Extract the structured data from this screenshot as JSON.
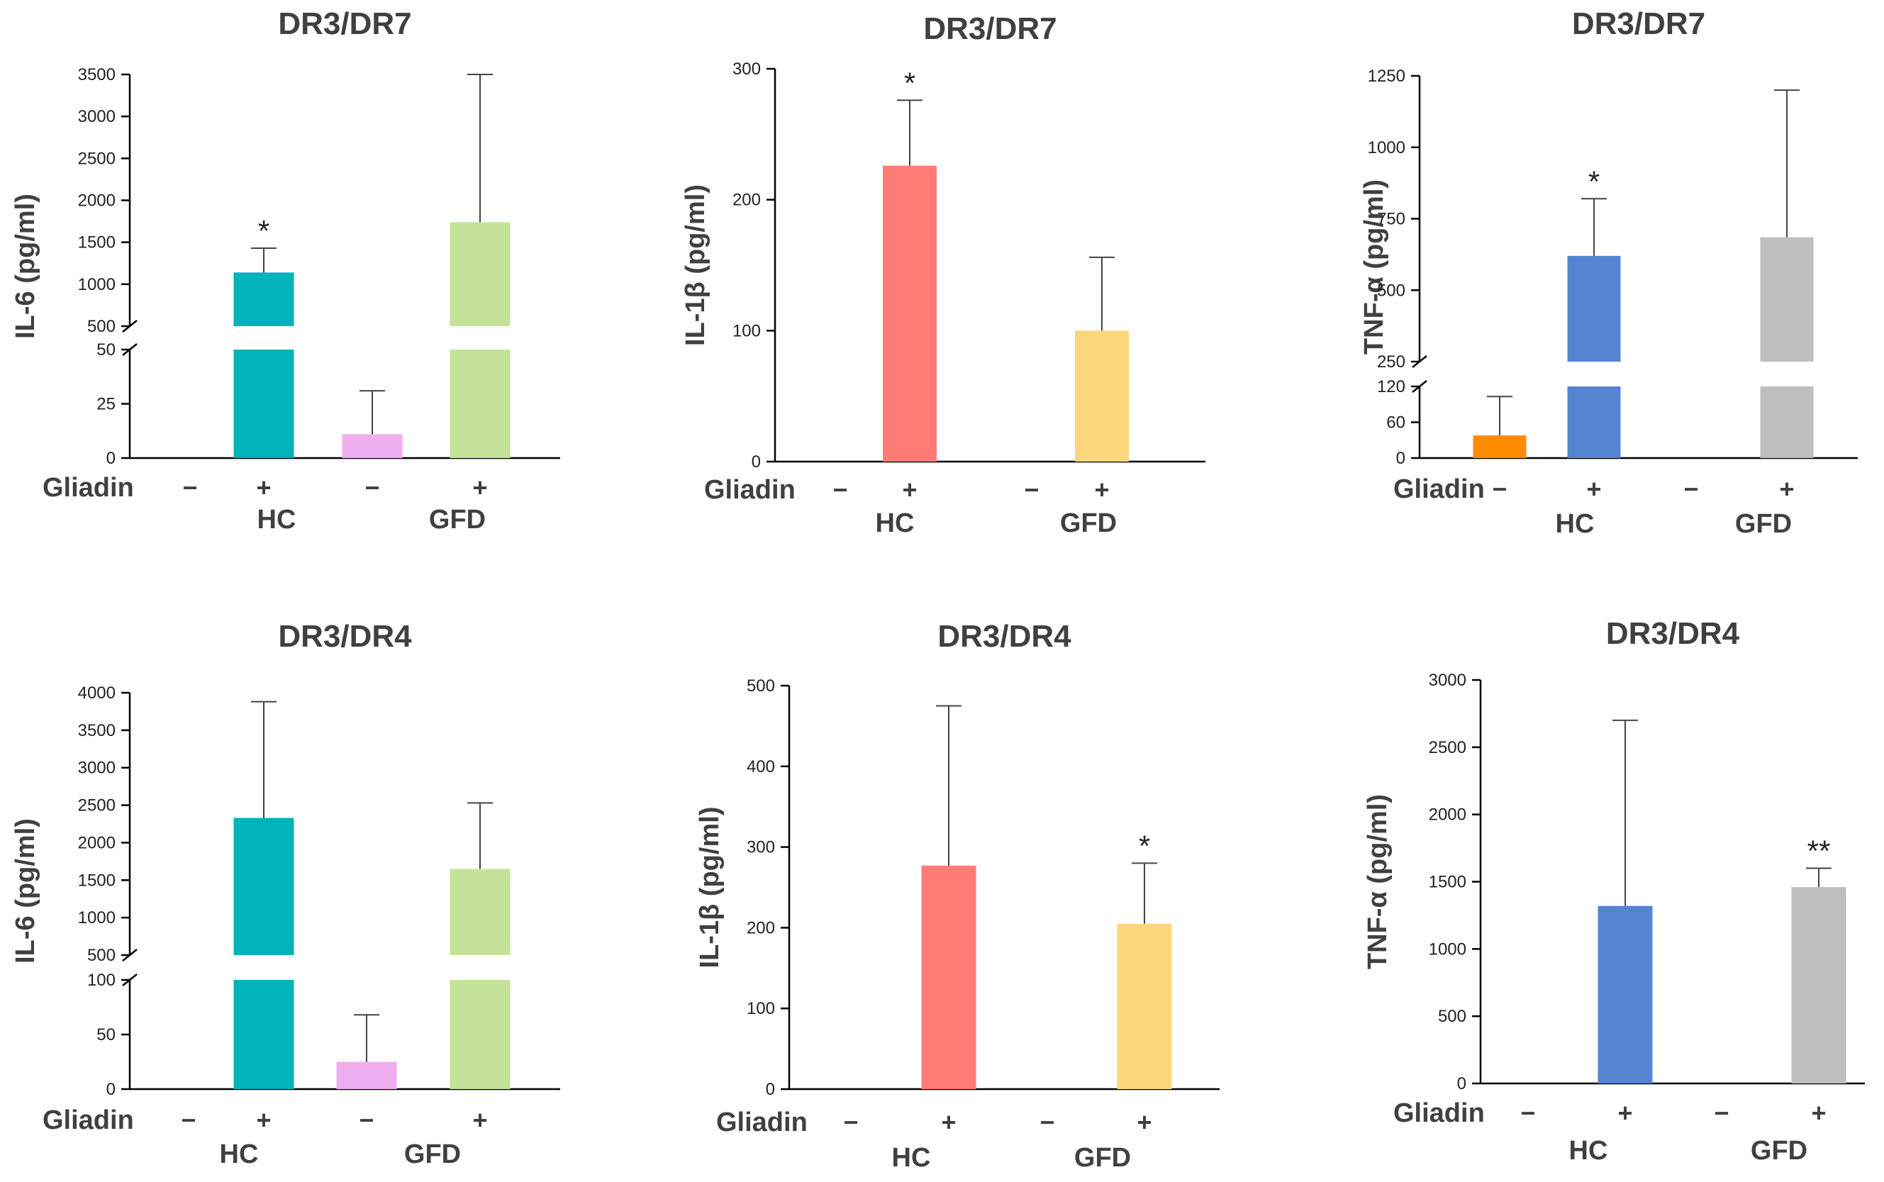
{
  "chart_data": [
    {
      "type": "bar",
      "title": "DR3/DR7",
      "ylabel": "IL-6 (pg/ml)",
      "xlabel": "Gliadin",
      "signs": [
        "−",
        "+",
        "−",
        "+"
      ],
      "groups": [
        "HC",
        "GFD"
      ],
      "values": [
        0,
        1140,
        11,
        1740
      ],
      "errors": [
        0,
        290,
        20,
        1760
      ],
      "significance": [
        "",
        "*",
        "",
        ""
      ],
      "colors": [
        "#00b2b9",
        "#00b2b9",
        "#efaeef",
        "#c5e29a"
      ],
      "axis_break": {
        "lower": [
          0,
          50
        ],
        "upper": [
          500,
          3500
        ]
      },
      "yticks_lower": [
        "0",
        "25",
        "50"
      ],
      "yticks_upper": [
        "500",
        "1000",
        "1500",
        "2000",
        "2500",
        "3000",
        "3500"
      ]
    },
    {
      "type": "bar",
      "title": "DR3/DR7",
      "ylabel": "IL-1β (pg/ml)",
      "xlabel": "Gliadin",
      "signs": [
        "−",
        "+",
        "−",
        "+"
      ],
      "groups": [
        "HC",
        "GFD"
      ],
      "values": [
        0,
        226,
        0,
        100
      ],
      "errors": [
        0,
        50,
        0,
        56
      ],
      "significance": [
        "",
        "*",
        "",
        ""
      ],
      "colors": [
        "#ff7c76",
        "#ff7c76",
        "#fdd67b",
        "#fdd67b"
      ],
      "ylim": [
        0,
        300
      ],
      "yticks": [
        "0",
        "100",
        "200",
        "300"
      ]
    },
    {
      "type": "bar",
      "title": "DR3/DR7",
      "ylabel": "TNF-α (pg/ml)",
      "xlabel": "Gliadin",
      "signs": [
        "−",
        "+",
        "−",
        "+"
      ],
      "groups": [
        "HC",
        "GFD"
      ],
      "values": [
        38,
        620,
        0,
        685
      ],
      "errors": [
        65,
        200,
        0,
        515
      ],
      "significance": [
        "",
        "*",
        "",
        ""
      ],
      "colors": [
        "#ff8c00",
        "#5585d0",
        "#bebebe",
        "#bebebe"
      ],
      "axis_break": {
        "lower": [
          0,
          120
        ],
        "upper": [
          250,
          1250
        ]
      },
      "yticks_lower": [
        "0",
        "60",
        "120"
      ],
      "yticks_upper": [
        "250",
        "500",
        "750",
        "1000",
        "1250"
      ]
    },
    {
      "type": "bar",
      "title": "DR3/DR4",
      "ylabel": "IL-6 (pg/ml)",
      "xlabel": "Gliadin",
      "signs": [
        "−",
        "+",
        "−",
        "+"
      ],
      "groups": [
        "HC",
        "GFD"
      ],
      "values": [
        0,
        2330,
        25,
        1650
      ],
      "errors": [
        0,
        1550,
        43,
        880
      ],
      "significance": [
        "",
        "",
        "",
        ""
      ],
      "colors": [
        "#00b2b9",
        "#00b2b9",
        "#efaeef",
        "#c5e29a"
      ],
      "axis_break": {
        "lower": [
          0,
          100
        ],
        "upper": [
          500,
          4000
        ]
      },
      "yticks_lower": [
        "0",
        "50",
        "100"
      ],
      "yticks_upper": [
        "500",
        "1000",
        "1500",
        "2000",
        "2500",
        "3000",
        "3500",
        "4000"
      ]
    },
    {
      "type": "bar",
      "title": "DR3/DR4",
      "ylabel": "IL-1β (pg/ml)",
      "xlabel": "Gliadin",
      "signs": [
        "−",
        "+",
        "−",
        "+"
      ],
      "groups": [
        "HC",
        "GFD"
      ],
      "values": [
        0,
        277,
        0,
        205
      ],
      "errors": [
        0,
        198,
        0,
        75
      ],
      "significance": [
        "",
        "",
        "",
        "*"
      ],
      "colors": [
        "#ff7c76",
        "#ff7c76",
        "#fdd67b",
        "#fdd67b"
      ],
      "ylim": [
        0,
        500
      ],
      "yticks": [
        "0",
        "100",
        "200",
        "300",
        "400",
        "500"
      ]
    },
    {
      "type": "bar",
      "title": "DR3/DR4",
      "ylabel": "TNF-α (pg/ml)",
      "xlabel": "Gliadin",
      "signs": [
        "−",
        "+",
        "−",
        "+"
      ],
      "groups": [
        "HC",
        "GFD"
      ],
      "values": [
        0,
        1320,
        0,
        1460
      ],
      "errors": [
        0,
        1380,
        0,
        140
      ],
      "significance": [
        "",
        "",
        "",
        "**"
      ],
      "colors": [
        "#5585d0",
        "#5585d0",
        "#bebebe",
        "#bebebe"
      ],
      "ylim": [
        0,
        3000
      ],
      "yticks": [
        "0",
        "500",
        "1000",
        "1500",
        "2000",
        "2500",
        "3000"
      ]
    }
  ]
}
